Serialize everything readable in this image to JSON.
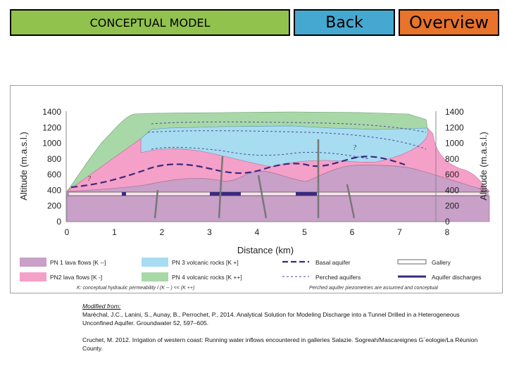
{
  "header": {
    "concept_label": "CONCEPTUAL MODEL",
    "back_label": "Back",
    "overview_label": "Overview"
  },
  "figure": {
    "xlabel": "Distance (km)",
    "ylabel": "Altitude (m.a.s.l.)",
    "y_ticks": [
      "1400",
      "1200",
      "1000",
      "800",
      "600",
      "400",
      "200",
      "0"
    ],
    "x_ticks": [
      "0",
      "1",
      "2",
      "3",
      "4",
      "5",
      "6",
      "7",
      "8"
    ],
    "question_marks": [
      "?",
      "?"
    ],
    "legend": {
      "pn1": "PN 1 lava flows [K --]",
      "pn2": "PN2 lava flows [K -]",
      "pn3": "PN 3 volcanic rocks [K +]",
      "pn4": "PN 4 volcanic rocks [K ++]",
      "basal": "Basal aquifer",
      "perched": "Perched aquifers",
      "gallery": "Gallery",
      "discharges": "Aquifer discharges",
      "note_left": "K: conceptual hydraulic permeability / (K -- ) << (K ++)",
      "note_right": "Perched aquifer piezometries are assumed and conceptual"
    },
    "colors": {
      "pn1": "#c8a0c8",
      "pn2": "#f5a0c8",
      "pn3": "#a8dcf0",
      "pn4": "#a8d8a8",
      "basal": "#3a2a80",
      "discharge": "#3a2a80"
    }
  },
  "citation": {
    "heading": "Modified from:",
    "ref1": "Maréchal, J.C., Lanini, S., Aunay, B., Perrochet, P., 2014. Analytical Solution for Modeling Discharge into a Tunnel Drilled in a Heterogeneous Unconfined Aquifer. Groundwater 52, 597–605.",
    "ref2": "Cruchet, M. 2012. Irrigation of western coast: Running water inflows encountered in galleries Salazie. Sogreah/Mascareignes G´eologie/La Réunion County."
  }
}
